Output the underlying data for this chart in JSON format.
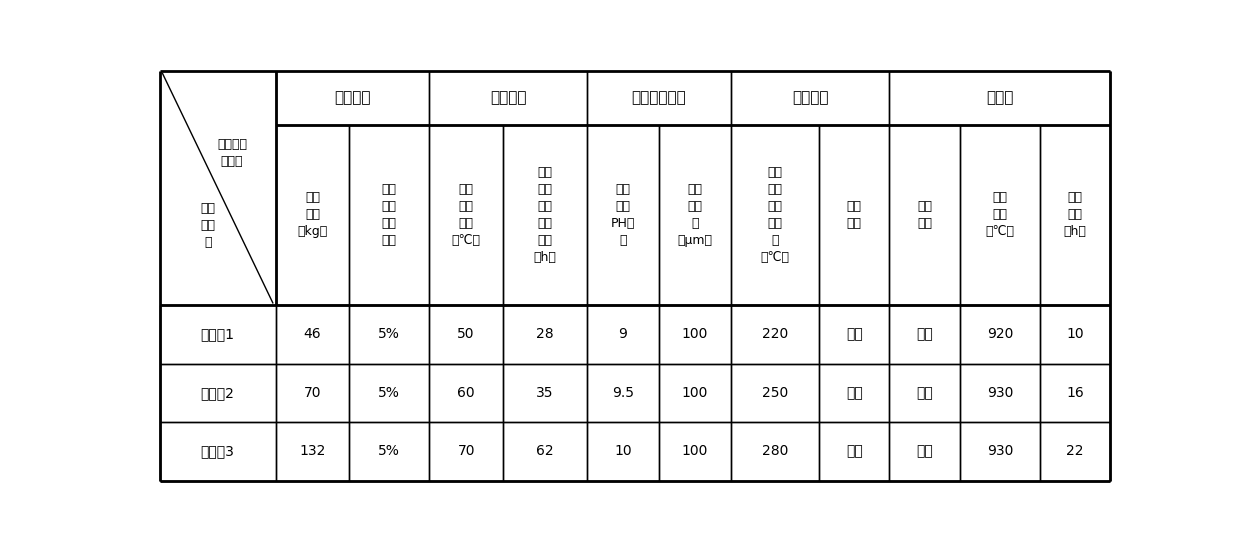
{
  "bg_color": "#ffffff",
  "border_color": "#000000",
  "group_labels": [
    "工艺步骤\n和参数",
    "表面净化",
    "氧化溶解",
    "配制铵盐溶液",
    "喷雾结晶",
    "氢还原"
  ],
  "group_cols": [
    1,
    2,
    2,
    2,
    2,
    3
  ],
  "sub_headers": [
    "废料\n重量\n（kg）",
    "配制\n稀酸\n稀碱\n浓度",
    "氧化\n溶解\n温度\n（℃）",
    "达到\n完全\n溶解\n所需\n时间\n（h）",
    "氨水\n添加\nPH终\n点",
    "过滤\n网精\n度\n（μm）",
    "喷雾\n干燥\n器进\n风温\n度\n（℃）",
    "收尘\n级数",
    "还原\n阶段",
    "还原\n温度\n（℃）",
    "还原\n时间\n（h）"
  ],
  "rows": [
    [
      "实施例1",
      "46",
      "5%",
      "50",
      "28",
      "9",
      "100",
      "220",
      "二级",
      "二段",
      "920",
      "10"
    ],
    [
      "实施例2",
      "70",
      "5%",
      "60",
      "35",
      "9.5",
      "100",
      "250",
      "二级",
      "二段",
      "930",
      "16"
    ],
    [
      "实施例3",
      "132",
      "5%",
      "70",
      "62",
      "10",
      "100",
      "280",
      "二级",
      "三段",
      "930",
      "22"
    ]
  ],
  "col_widths_rel": [
    1.45,
    0.92,
    1.0,
    0.92,
    1.05,
    0.9,
    0.9,
    1.1,
    0.88,
    0.88,
    1.0,
    0.88
  ],
  "top_label_upper": "工艺步骤\n和参数",
  "top_label_lower": "实施\n例编\n号",
  "lw_thick": 2.0,
  "lw_thin": 1.0,
  "font_size_group": 11,
  "font_size_sub": 9,
  "font_size_data": 10,
  "font_size_corner": 9
}
